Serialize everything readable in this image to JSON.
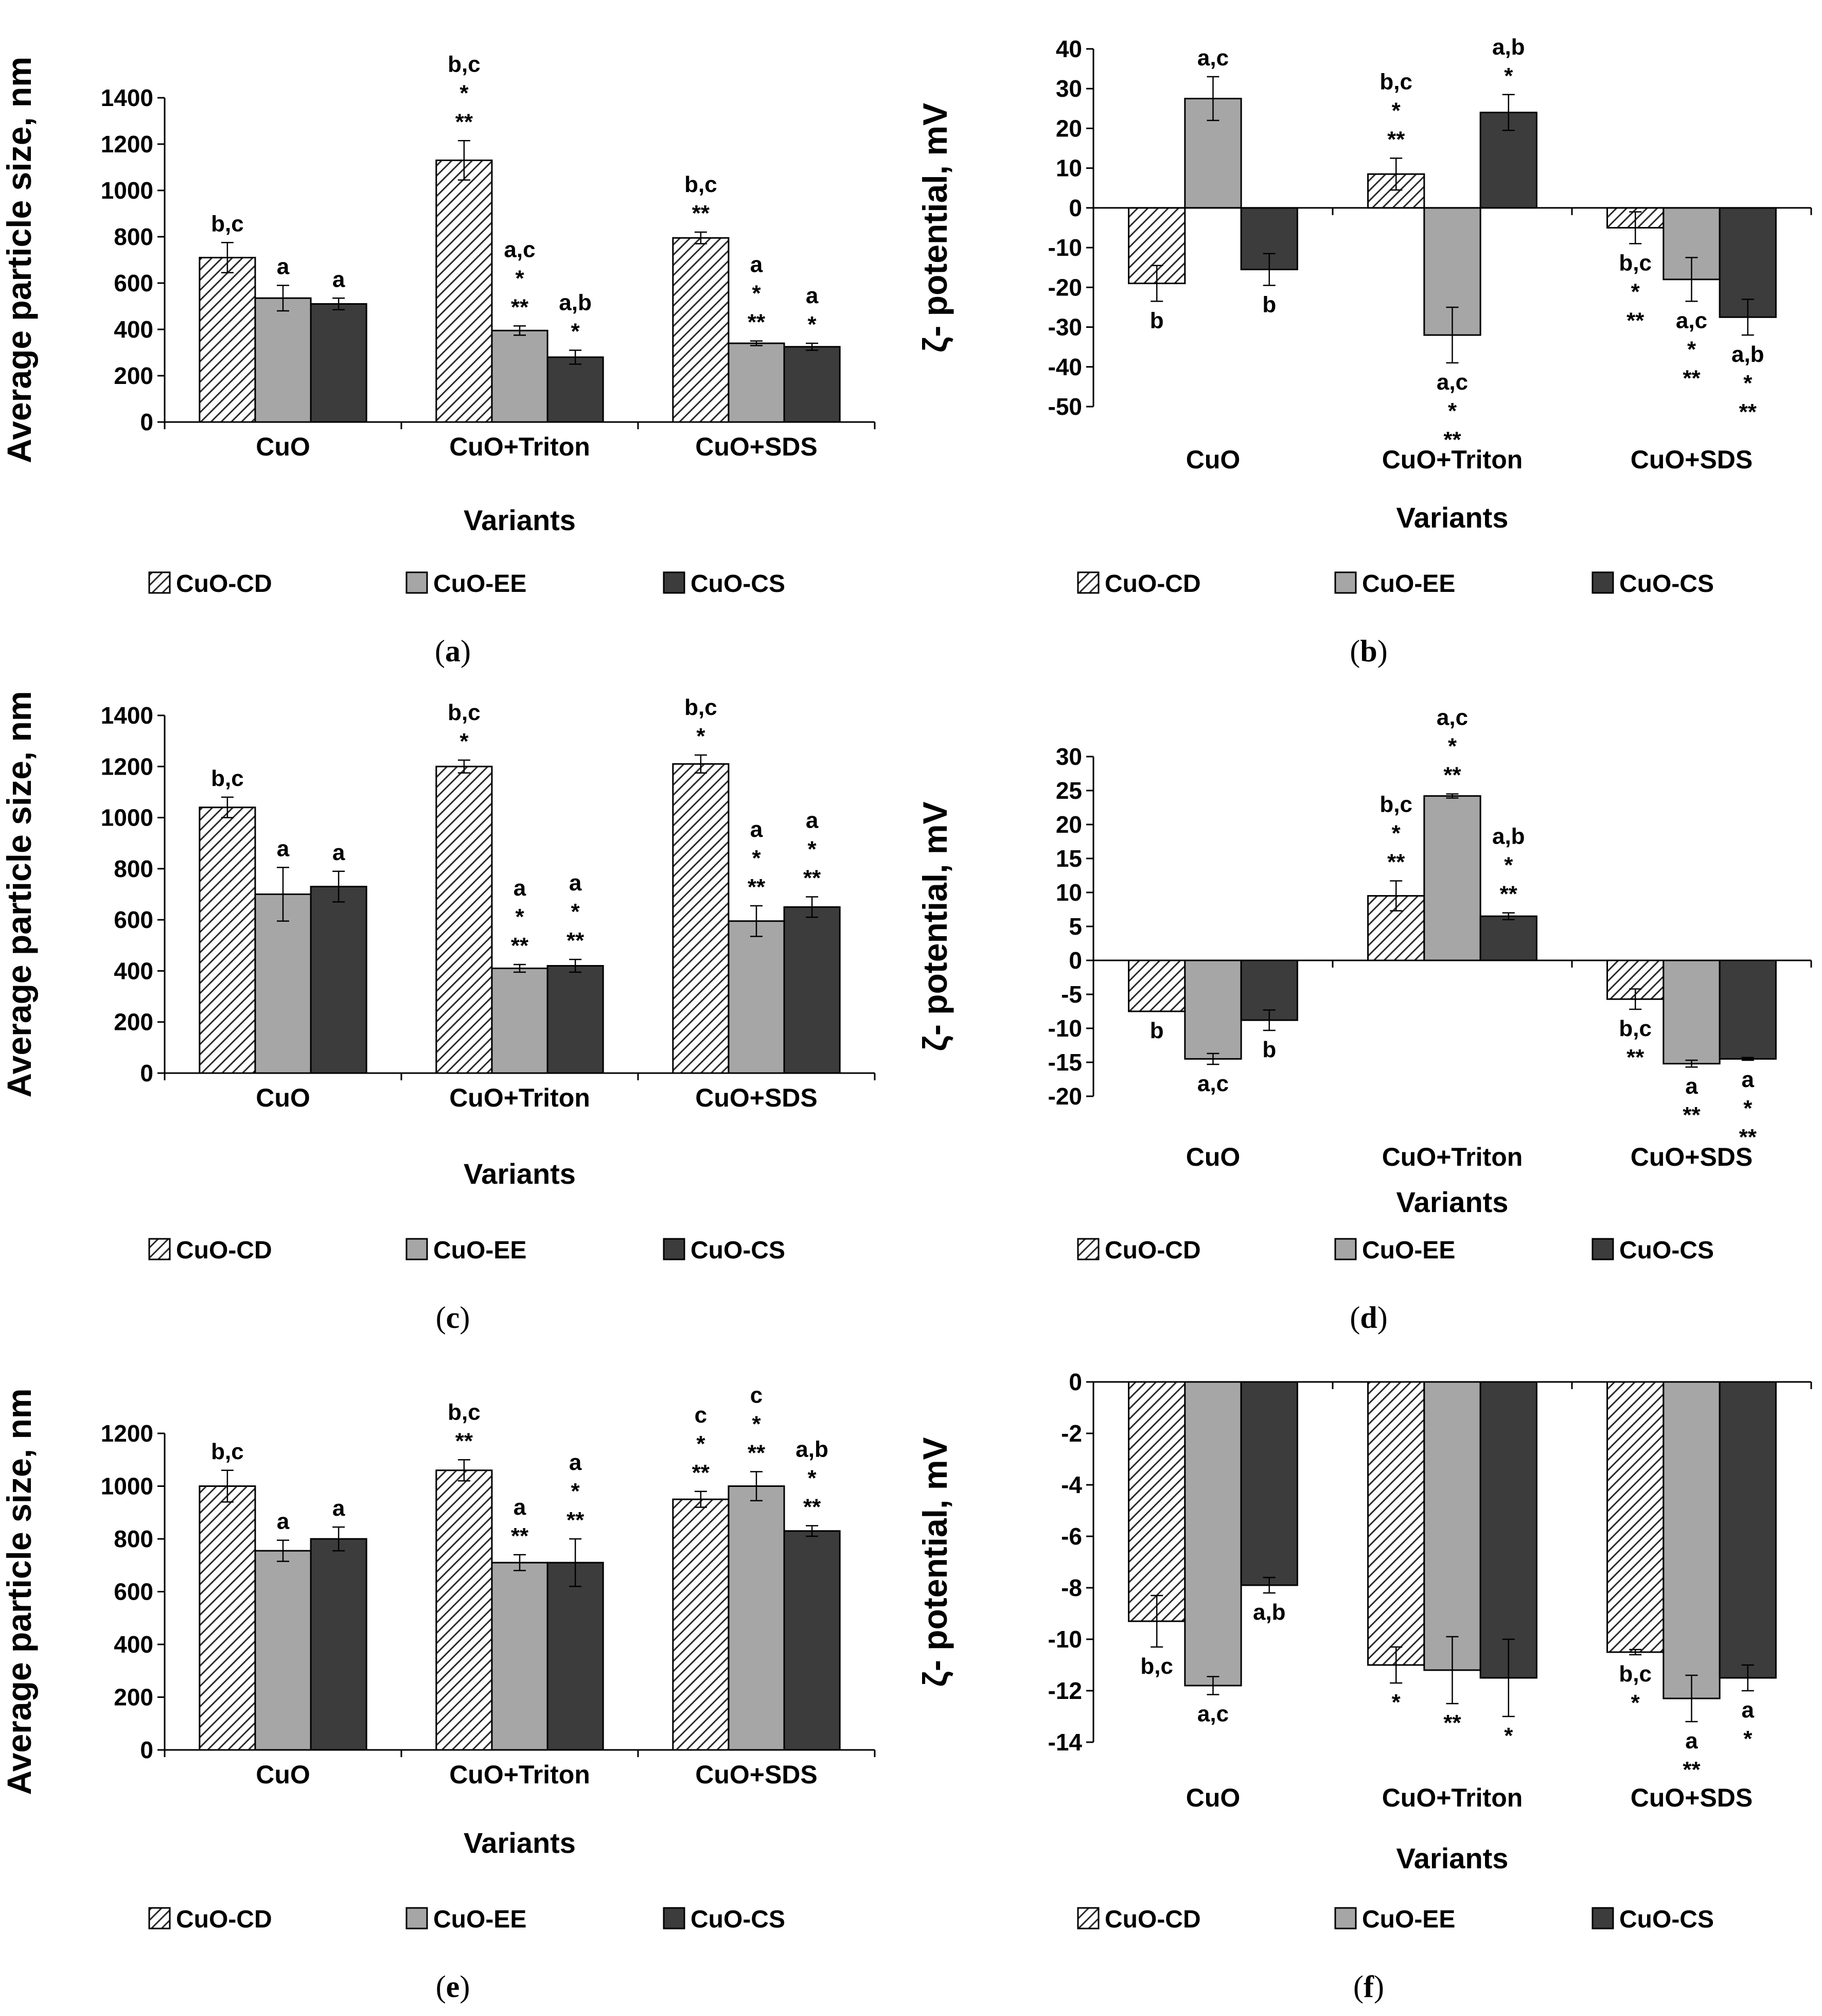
{
  "colors": {
    "cd_fill": "hatch",
    "ee_fill": "#a6a6a6",
    "cs_fill": "#3c3c3c",
    "axis": "#000000"
  },
  "chart_data": [
    {
      "id": "a",
      "panel_label": "a",
      "type": "bar",
      "title": "",
      "xlabel": "Variants",
      "ylabel": "Average particle size, nm",
      "categories": [
        "CuO",
        "CuO+Triton",
        "CuO+SDS"
      ],
      "ylim": [
        0,
        1400
      ],
      "yticks": [
        0,
        200,
        400,
        600,
        800,
        1000,
        1200,
        1400
      ],
      "legend_position": "bottom",
      "series": [
        {
          "name": "CuO-CD",
          "values": [
            710,
            1130,
            795
          ],
          "errors": [
            65,
            85,
            25
          ],
          "annotations": [
            [
              "b,c"
            ],
            [
              "b,c",
              "*",
              "**"
            ],
            [
              "b,c",
              "**"
            ]
          ]
        },
        {
          "name": "CuO-EE",
          "values": [
            535,
            395,
            340
          ],
          "errors": [
            55,
            20,
            10
          ],
          "annotations": [
            [
              "a"
            ],
            [
              "a,c",
              "*",
              "**"
            ],
            [
              "a",
              "*",
              "**"
            ]
          ]
        },
        {
          "name": "CuO-CS",
          "values": [
            510,
            280,
            325
          ],
          "errors": [
            25,
            30,
            15
          ],
          "annotations": [
            [
              "a"
            ],
            [
              "a,b",
              "*"
            ],
            [
              "a",
              "*"
            ]
          ]
        }
      ]
    },
    {
      "id": "b",
      "panel_label": "b",
      "type": "bar",
      "title": "",
      "xlabel": "Variants",
      "ylabel": "ζ- potential, mV",
      "categories": [
        "CuO",
        "CuO+Triton",
        "CuO+SDS"
      ],
      "ylim": [
        -50,
        40
      ],
      "yticks": [
        -50,
        -40,
        -30,
        -20,
        -10,
        0,
        10,
        20,
        30,
        40
      ],
      "legend_position": "bottom",
      "series": [
        {
          "name": "CuO-CD",
          "values": [
            -19,
            8.5,
            -5
          ],
          "errors": [
            4.5,
            4,
            4
          ],
          "annotations": [
            [
              "b"
            ],
            [
              "b,c",
              "*",
              "**"
            ],
            [
              "b,c",
              "*",
              "**"
            ]
          ]
        },
        {
          "name": "CuO-EE",
          "values": [
            27.5,
            -32,
            -18
          ],
          "errors": [
            5.5,
            7,
            5.5
          ],
          "annotations": [
            [
              "a,c"
            ],
            [
              "a,c",
              "*",
              "**"
            ],
            [
              "a,c",
              "*",
              "**"
            ]
          ]
        },
        {
          "name": "CuO-CS",
          "values": [
            -15.5,
            24,
            -27.5
          ],
          "errors": [
            4,
            4.5,
            4.5
          ],
          "annotations": [
            [
              "b"
            ],
            [
              "a,b",
              "*"
            ],
            [
              "a,b",
              "*",
              "**"
            ]
          ]
        }
      ]
    },
    {
      "id": "c",
      "panel_label": "c",
      "type": "bar",
      "title": "",
      "xlabel": "Variants",
      "ylabel": "Average particle size, nm",
      "categories": [
        "CuO",
        "CuO+Triton",
        "CuO+SDS"
      ],
      "ylim": [
        0,
        1400
      ],
      "yticks": [
        0,
        200,
        400,
        600,
        800,
        1000,
        1200,
        1400
      ],
      "legend_position": "bottom",
      "series": [
        {
          "name": "CuO-CD",
          "values": [
            1040,
            1200,
            1210
          ],
          "errors": [
            40,
            25,
            35
          ],
          "annotations": [
            [
              "b,c"
            ],
            [
              "b,c",
              "*"
            ],
            [
              "b,c",
              "*"
            ]
          ]
        },
        {
          "name": "CuO-EE",
          "values": [
            700,
            410,
            595
          ],
          "errors": [
            105,
            15,
            60
          ],
          "annotations": [
            [
              "a"
            ],
            [
              "a",
              "*",
              "**"
            ],
            [
              "a",
              "*",
              "**"
            ]
          ]
        },
        {
          "name": "CuO-CS",
          "values": [
            730,
            420,
            650
          ],
          "errors": [
            60,
            25,
            40
          ],
          "annotations": [
            [
              "a"
            ],
            [
              "a",
              "*",
              "**"
            ],
            [
              "a",
              "*",
              "**"
            ]
          ]
        }
      ]
    },
    {
      "id": "d",
      "panel_label": "d",
      "type": "bar",
      "title": "",
      "xlabel": "Variants",
      "ylabel": "ζ- potential, mV",
      "categories": [
        "CuO",
        "CuO+Triton",
        "CuO+SDS"
      ],
      "ylim": [
        -20,
        30
      ],
      "yticks": [
        -20,
        -15,
        -10,
        -5,
        0,
        5,
        10,
        15,
        20,
        25,
        30
      ],
      "legend_position": "bottom",
      "series": [
        {
          "name": "CuO-CD",
          "values": [
            -7.5,
            9.5,
            -5.7
          ],
          "errors": [
            0,
            2.2,
            1.5
          ],
          "annotations": [
            [
              "b"
            ],
            [
              "b,c",
              "*",
              "**"
            ],
            [
              "b,c",
              "**"
            ]
          ]
        },
        {
          "name": "CuO-EE",
          "values": [
            -14.5,
            24.2,
            -15.2
          ],
          "errors": [
            0.8,
            0.3,
            0.5
          ],
          "annotations": [
            [
              "a,c"
            ],
            [
              "a,c",
              "*",
              "**"
            ],
            [
              "a",
              "**"
            ]
          ]
        },
        {
          "name": "CuO-CS",
          "values": [
            -8.8,
            6.5,
            -14.5
          ],
          "errors": [
            1.5,
            0.5,
            0.2
          ],
          "annotations": [
            [
              "b"
            ],
            [
              "a,b",
              "*",
              "**"
            ],
            [
              "a",
              "*",
              "**"
            ]
          ]
        }
      ]
    },
    {
      "id": "e",
      "panel_label": "e",
      "type": "bar",
      "title": "",
      "xlabel": "Variants",
      "ylabel": "Average particle size, nm",
      "categories": [
        "CuO",
        "CuO+Triton",
        "CuO+SDS"
      ],
      "ylim": [
        0,
        1200
      ],
      "yticks": [
        0,
        200,
        400,
        600,
        800,
        1000,
        1200
      ],
      "legend_position": "bottom",
      "series": [
        {
          "name": "CuO-CD",
          "values": [
            1000,
            1060,
            950
          ],
          "errors": [
            60,
            40,
            30
          ],
          "annotations": [
            [
              "b,c"
            ],
            [
              "b,c",
              "**"
            ],
            [
              "c",
              "*",
              "**"
            ]
          ]
        },
        {
          "name": "CuO-EE",
          "values": [
            755,
            710,
            1000
          ],
          "errors": [
            40,
            30,
            55
          ],
          "annotations": [
            [
              "a"
            ],
            [
              "a",
              "**"
            ],
            [
              "c",
              "*",
              "**"
            ]
          ]
        },
        {
          "name": "CuO-CS",
          "values": [
            800,
            710,
            830
          ],
          "errors": [
            45,
            90,
            20
          ],
          "annotations": [
            [
              "a"
            ],
            [
              "a",
              "*",
              "**"
            ],
            [
              "a,b",
              "*",
              "**"
            ]
          ]
        }
      ]
    },
    {
      "id": "f",
      "panel_label": "f",
      "type": "bar",
      "title": "",
      "xlabel": "Variants",
      "ylabel": "ζ- potential, mV",
      "categories": [
        "CuO",
        "CuO+Triton",
        "CuO+SDS"
      ],
      "ylim": [
        -14,
        0
      ],
      "yticks": [
        -14,
        -12,
        -10,
        -8,
        -6,
        -4,
        -2,
        0
      ],
      "legend_position": "bottom",
      "series": [
        {
          "name": "CuO-CD",
          "values": [
            -9.3,
            -11.0,
            -10.5
          ],
          "errors": [
            1.0,
            0.7,
            0.1
          ],
          "annotations": [
            [
              "b,c"
            ],
            [
              "*"
            ],
            [
              "b,c",
              "*"
            ]
          ]
        },
        {
          "name": "CuO-EE",
          "values": [
            -11.8,
            -11.2,
            -12.3
          ],
          "errors": [
            0.35,
            1.3,
            0.9
          ],
          "annotations": [
            [
              "a,c"
            ],
            [
              "**"
            ],
            [
              "a",
              "**"
            ]
          ]
        },
        {
          "name": "CuO-CS",
          "values": [
            -7.9,
            -11.5,
            -11.5
          ],
          "errors": [
            0.3,
            1.5,
            0.5
          ],
          "annotations": [
            [
              "a,b"
            ],
            [
              "*"
            ],
            [
              "a",
              "*"
            ]
          ]
        }
      ]
    }
  ]
}
